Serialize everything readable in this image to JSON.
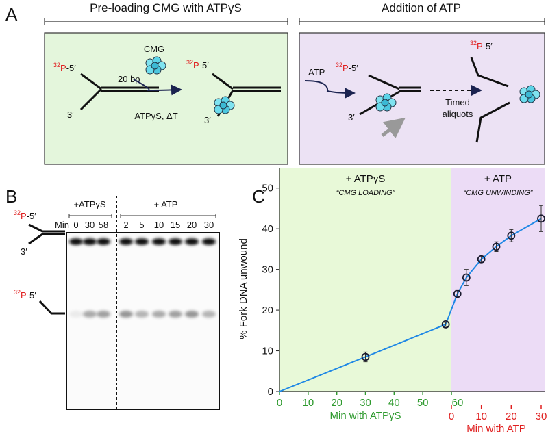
{
  "panel_a": {
    "letter": "A",
    "left_header": "Pre-loading CMG with ATPγS",
    "right_header": "Addition of ATP",
    "label_32p": {
      "mass": "32",
      "symbol": "P",
      "end": "-5′"
    },
    "three_prime": "3′",
    "bp": "20 bp",
    "cmg": "CMG",
    "conditions": "ATPγS, ΔT",
    "atp": "ATP",
    "aliquots": [
      "Timed",
      "aliquots"
    ]
  },
  "panel_b": {
    "letter": "B",
    "groups": [
      "+ATPγS",
      "+ ATP"
    ],
    "min": "Min",
    "lanes": [
      0,
      30,
      58,
      2,
      5,
      10,
      15,
      20,
      30
    ]
  },
  "chart_data": {
    "type": "line",
    "letter": "C",
    "ylabel": "% Fork DNA unwound",
    "ylim": [
      0,
      55
    ],
    "yticks": [
      0,
      10,
      20,
      30,
      40,
      50
    ],
    "line_color": "#1f88e5",
    "marker_color": "#1a1a2e",
    "phases": [
      {
        "title": "+ ATPγS",
        "subtitle": "“CMG LOADING”",
        "xlabel": "Min with ATPγS",
        "color": "#2e9a2e",
        "background": "#e8f9d8",
        "xlim": [
          0,
          60
        ],
        "xticks": [
          0,
          10,
          20,
          30,
          40,
          50,
          60
        ],
        "x": [
          0,
          30,
          58
        ],
        "values": [
          0,
          8.5,
          16.5
        ],
        "errors": [
          null,
          1.2,
          0.5
        ]
      },
      {
        "title": "+ ATP",
        "subtitle": "“CMG UNWINDING”",
        "xlabel": "Min with ATP",
        "color": "#e02020",
        "background": "#ecdcf6",
        "xlim": [
          0,
          30
        ],
        "xticks": [
          0,
          10,
          20,
          30
        ],
        "x": [
          2,
          5,
          10,
          15,
          20,
          30
        ],
        "values": [
          24,
          28,
          32.5,
          35.6,
          38.3,
          42.5
        ],
        "errors": [
          1,
          2,
          0.8,
          1.2,
          1.5,
          3.2
        ]
      }
    ]
  }
}
